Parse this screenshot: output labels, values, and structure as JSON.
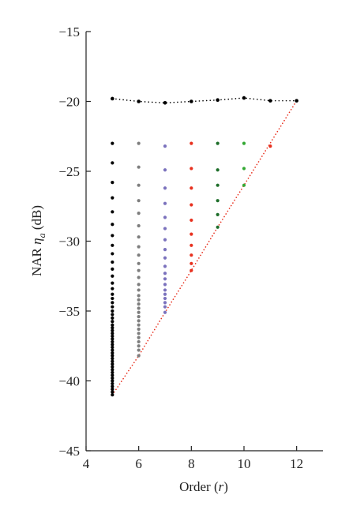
{
  "chart_data": {
    "type": "scatter",
    "title": "",
    "xlabel": "Order (",
    "xlabel_var": "r",
    "xlabel_close": ")",
    "ylabel": "NAR ",
    "ylabel_var": "η",
    "ylabel_sub": "a",
    "ylabel_unit": " (dB)",
    "xlim": [
      4,
      13
    ],
    "ylim": [
      -45,
      -15
    ],
    "xticks": [
      4,
      6,
      8,
      10,
      12
    ],
    "yticks": [
      -15,
      -20,
      -25,
      -30,
      -35,
      -40,
      -45
    ],
    "x_tick_labels": [
      "4",
      "6",
      "8",
      "10",
      "12"
    ],
    "y_tick_labels": [
      "−15",
      "−20",
      "−25",
      "−30",
      "−35",
      "−40",
      "−45"
    ],
    "grid": false,
    "legend": "none",
    "top_line": {
      "style": "dotted",
      "color": "#000000",
      "x": [
        5,
        6,
        7,
        8,
        9,
        10,
        11,
        12
      ],
      "y": [
        -19.8,
        -20.0,
        -20.1,
        -20.0,
        -19.9,
        -19.75,
        -19.95,
        -19.95
      ]
    },
    "boundary_line": {
      "style": "dotted",
      "color": "#e8301e",
      "x": [
        5,
        6,
        7,
        8,
        9,
        10,
        12
      ],
      "y": [
        -41.0,
        -38.2,
        -35.1,
        -32.1,
        -29.0,
        -26.0,
        -19.95
      ]
    },
    "series": [
      {
        "x": 5,
        "color": "#000000",
        "values": [
          -23.0,
          -24.4,
          -25.8,
          -26.9,
          -27.9,
          -28.8,
          -29.6,
          -30.3,
          -30.9,
          -31.5,
          -32.0,
          -32.5,
          -33.0,
          -33.4,
          -33.8,
          -34.1,
          -34.4,
          -34.7,
          -35.0,
          -35.25,
          -35.5,
          -35.75,
          -36.0,
          -36.2,
          -36.4,
          -36.6,
          -36.8,
          -37.0,
          -37.2,
          -37.4,
          -37.6,
          -37.8,
          -38.0,
          -38.2,
          -38.4,
          -38.6,
          -38.8,
          -39.0,
          -39.2,
          -39.4,
          -39.6,
          -39.8,
          -40.0,
          -40.2,
          -40.4,
          -40.6,
          -40.8,
          -41.0
        ]
      },
      {
        "x": 6,
        "color": "#7d7d7d",
        "values": [
          -23.0,
          -24.7,
          -26.0,
          -27.1,
          -28.0,
          -28.9,
          -29.7,
          -30.4,
          -31.0,
          -31.6,
          -32.1,
          -32.6,
          -33.1,
          -33.5,
          -33.9,
          -34.2,
          -34.5,
          -34.8,
          -35.1,
          -35.4,
          -35.7,
          -36.0,
          -36.3,
          -36.6,
          -36.9,
          -37.2,
          -37.5,
          -37.8,
          -38.2
        ]
      },
      {
        "x": 7,
        "color": "#7b72bd",
        "values": [
          -23.2,
          -24.9,
          -26.2,
          -27.3,
          -28.3,
          -29.1,
          -29.9,
          -30.6,
          -31.2,
          -31.8,
          -32.3,
          -32.7,
          -33.1,
          -33.5,
          -33.8,
          -34.1,
          -34.4,
          -34.7,
          -35.1
        ]
      },
      {
        "x": 8,
        "color": "#e8301e",
        "values": [
          -23.0,
          -24.8,
          -26.2,
          -27.4,
          -28.5,
          -29.5,
          -30.3,
          -31.0,
          -31.6,
          -32.1
        ]
      },
      {
        "x": 9,
        "color": "#1e6e2a",
        "values": [
          -23.0,
          -24.9,
          -26.0,
          -27.1,
          -28.1,
          -29.0
        ]
      },
      {
        "x": 10,
        "color": "#33a833",
        "values": [
          -23.0,
          -24.8,
          -26.0
        ]
      },
      {
        "x": 11,
        "color": "#e8301e",
        "values": [
          -23.2
        ]
      }
    ]
  }
}
